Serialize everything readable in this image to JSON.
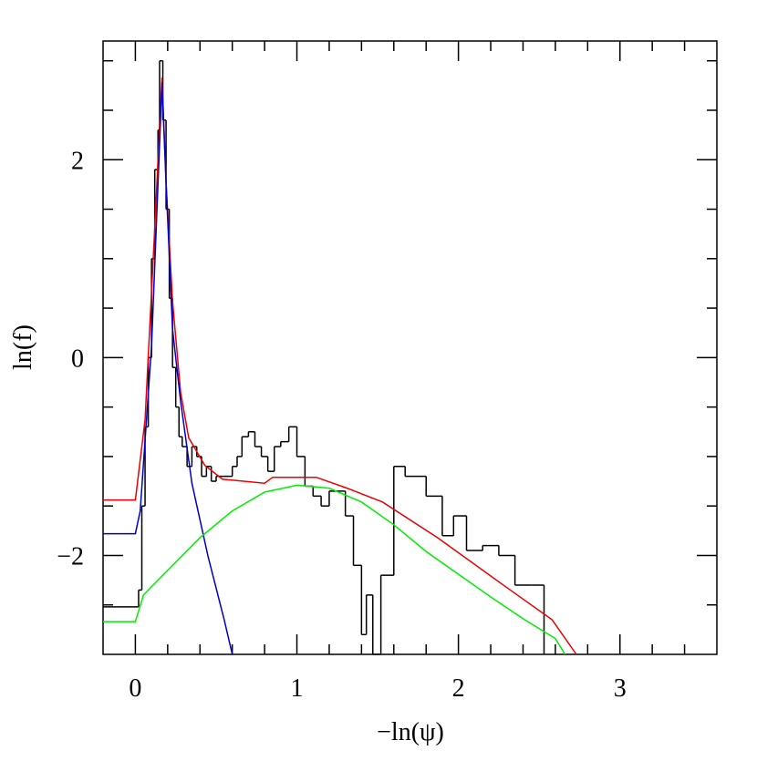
{
  "chart_data": {
    "type": "line",
    "xlabel": "−ln(ψ)",
    "ylabel": "ln(f)",
    "xlim": [
      -0.2,
      3.6
    ],
    "ylim": [
      -3,
      3.2
    ],
    "xticks": [
      0,
      1,
      2,
      3
    ],
    "yticks": [
      {
        "value": -2,
        "label": "−2"
      },
      0,
      2
    ],
    "xminorticks": [
      0.2,
      0.4,
      0.6,
      0.8,
      1.2,
      1.4,
      1.6,
      1.8,
      2.2,
      2.4,
      2.6,
      2.8,
      3.2,
      3.4
    ],
    "yminorticks": [
      -2.5,
      -1.5,
      -1,
      -0.5,
      0.5,
      1,
      1.5,
      2.5,
      3
    ],
    "series": [
      {
        "color": "#000000",
        "step": true,
        "x": [
          -0.2,
          0.02,
          0.04,
          0.06,
          0.08,
          0.1,
          0.12,
          0.14,
          0.15,
          0.17,
          0.19,
          0.21,
          0.23,
          0.25,
          0.27,
          0.29,
          0.32,
          0.35,
          0.38,
          0.41,
          0.44,
          0.47,
          0.5,
          0.55,
          0.6,
          0.63,
          0.66,
          0.7,
          0.74,
          0.78,
          0.82,
          0.86,
          0.9,
          0.95,
          1.0,
          1.05,
          1.1,
          1.15,
          1.2,
          1.3,
          1.35,
          1.4,
          1.43,
          1.47,
          1.52,
          1.6,
          1.67,
          1.8,
          1.9,
          1.97,
          2.05,
          2.15,
          2.25,
          2.35,
          2.45,
          2.53
        ],
        "values": [
          -2.52,
          -2.35,
          -1.5,
          -0.7,
          0.0,
          1.0,
          1.9,
          2.3,
          3.0,
          2.4,
          1.5,
          0.6,
          -0.1,
          -0.5,
          -0.8,
          -0.9,
          -1.1,
          -0.9,
          -1.0,
          -1.2,
          -1.1,
          -1.25,
          -1.2,
          -1.2,
          -1.1,
          -1.0,
          -0.8,
          -0.75,
          -0.9,
          -1.0,
          -1.15,
          -0.9,
          -0.85,
          -0.7,
          -1.0,
          -1.3,
          -1.4,
          -1.5,
          -1.35,
          -1.6,
          -2.1,
          -2.8,
          -2.4,
          -3.0,
          -2.2,
          -1.1,
          -1.2,
          -1.4,
          -1.8,
          -1.6,
          -1.95,
          -1.9,
          -2.0,
          -2.3,
          -2.3,
          -3.0
        ]
      },
      {
        "color": "#ee0000",
        "x": [
          -0.2,
          0.0,
          0.06,
          0.12,
          0.165,
          0.19,
          0.23,
          0.28,
          0.33,
          0.43,
          0.54,
          0.8,
          0.85,
          1.12,
          1.31,
          1.53,
          1.87,
          2.27,
          2.58,
          2.73
        ],
        "values": [
          -1.44,
          -1.44,
          -0.63,
          1.31,
          2.83,
          1.77,
          0.57,
          -0.35,
          -0.81,
          -1.09,
          -1.23,
          -1.27,
          -1.21,
          -1.21,
          -1.32,
          -1.46,
          -1.82,
          -2.29,
          -2.65,
          -3.0
        ]
      },
      {
        "color": "#0000cc",
        "x": [
          -0.2,
          0.0,
          0.03,
          0.1,
          0.165,
          0.19,
          0.23,
          0.28,
          0.35,
          0.45,
          0.55,
          0.6
        ],
        "values": [
          -1.78,
          -1.78,
          -1.55,
          0.11,
          2.78,
          1.77,
          0.29,
          -0.44,
          -1.27,
          -2.01,
          -2.65,
          -3.0
        ]
      },
      {
        "color": "#00ee00",
        "x": [
          -0.2,
          0.0,
          0.05,
          0.2,
          0.4,
          0.6,
          0.8,
          1.0,
          1.2,
          1.4,
          1.6,
          1.8,
          2.0,
          2.2,
          2.4,
          2.6,
          2.66
        ],
        "values": [
          -2.67,
          -2.67,
          -2.4,
          -2.15,
          -1.82,
          -1.55,
          -1.36,
          -1.29,
          -1.32,
          -1.46,
          -1.69,
          -1.96,
          -2.19,
          -2.42,
          -2.64,
          -2.84,
          -3.0
        ]
      }
    ]
  }
}
